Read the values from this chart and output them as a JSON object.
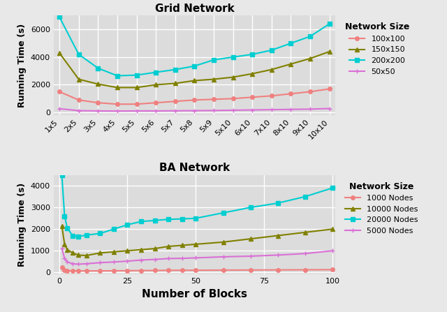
{
  "grid": {
    "title": "Grid Network",
    "ylabel": "Running Time (s)",
    "xtick_labels": [
      "1x5",
      "2x5",
      "3x5",
      "4x5",
      "5x5",
      "5x6",
      "5x7",
      "5x8",
      "5x9",
      "5x10",
      "6x10",
      "7x10",
      "8x10",
      "9x10",
      "10x10"
    ],
    "ylim": [
      -200,
      7000
    ],
    "yticks": [
      0,
      2000,
      4000,
      6000
    ],
    "legend_title": "Network Size",
    "series": [
      {
        "label": "100x100",
        "color": "#F08080",
        "marker": "o",
        "markersize": 4,
        "values": [
          1500,
          900,
          700,
          600,
          600,
          700,
          800,
          900,
          950,
          1000,
          1100,
          1200,
          1350,
          1500,
          1700
        ]
      },
      {
        "label": "150x150",
        "color": "#808000",
        "marker": "^",
        "markersize": 5,
        "values": [
          4300,
          2400,
          2050,
          1800,
          1800,
          2000,
          2100,
          2300,
          2400,
          2550,
          2800,
          3100,
          3500,
          3900,
          4400
        ]
      },
      {
        "label": "200x200",
        "color": "#00CED1",
        "marker": "s",
        "markersize": 4,
        "values": [
          6900,
          4200,
          3200,
          2650,
          2700,
          2900,
          3100,
          3350,
          3800,
          4000,
          4200,
          4500,
          5000,
          5500,
          6400
        ]
      },
      {
        "label": "50x50",
        "color": "#DA70D6",
        "marker": "+",
        "markersize": 5,
        "values": [
          270,
          130,
          110,
          100,
          110,
          110,
          120,
          130,
          140,
          160,
          180,
          200,
          220,
          240,
          280
        ]
      }
    ]
  },
  "ba": {
    "title": "BA Network",
    "xlabel": "Number of Blocks",
    "ylabel": "Running Time (s)",
    "xlim": [
      1,
      100
    ],
    "ylim": [
      -100,
      4500
    ],
    "yticks": [
      0,
      1000,
      2000,
      3000,
      4000
    ],
    "xticks": [
      0,
      25,
      50,
      75,
      100
    ],
    "legend_title": "Network Size",
    "series": [
      {
        "label": "1000 Nodes",
        "color": "#F08080",
        "marker": "o",
        "markersize": 4,
        "x": [
          1,
          2,
          3,
          5,
          7,
          10,
          15,
          20,
          25,
          30,
          35,
          40,
          45,
          50,
          60,
          70,
          80,
          90,
          100
        ],
        "values": [
          220,
          110,
          80,
          70,
          70,
          70,
          70,
          75,
          80,
          85,
          90,
          95,
          100,
          100,
          105,
          110,
          115,
          120,
          125
        ]
      },
      {
        "label": "10000 Nodes",
        "color": "#808000",
        "marker": "^",
        "markersize": 5,
        "x": [
          1,
          2,
          3,
          5,
          7,
          10,
          15,
          20,
          25,
          30,
          35,
          40,
          45,
          50,
          60,
          70,
          80,
          90,
          100
        ],
        "values": [
          2150,
          1300,
          1050,
          900,
          800,
          780,
          900,
          950,
          1000,
          1050,
          1100,
          1200,
          1250,
          1300,
          1400,
          1550,
          1700,
          1850,
          2000
        ]
      },
      {
        "label": "20000 Nodes",
        "color": "#00CED1",
        "marker": "s",
        "markersize": 4,
        "x": [
          1,
          2,
          3,
          5,
          7,
          10,
          15,
          20,
          25,
          30,
          35,
          40,
          45,
          50,
          60,
          70,
          80,
          90,
          100
        ],
        "values": [
          4500,
          2600,
          2050,
          1680,
          1660,
          1720,
          1800,
          2000,
          2200,
          2350,
          2400,
          2450,
          2470,
          2500,
          2750,
          3000,
          3200,
          3500,
          3900
        ]
      },
      {
        "label": "5000 Nodes",
        "color": "#DA70D6",
        "marker": "+",
        "markersize": 5,
        "x": [
          1,
          2,
          3,
          5,
          7,
          10,
          15,
          20,
          25,
          30,
          35,
          40,
          45,
          50,
          60,
          70,
          80,
          90,
          100
        ],
        "values": [
          1100,
          650,
          480,
          400,
          380,
          400,
          450,
          480,
          520,
          570,
          600,
          640,
          650,
          670,
          720,
          750,
          800,
          870,
          1000
        ]
      }
    ]
  },
  "bg_color": "#E8E8E8",
  "plot_bg_color": "#DCDCDC",
  "grid_color": "white"
}
